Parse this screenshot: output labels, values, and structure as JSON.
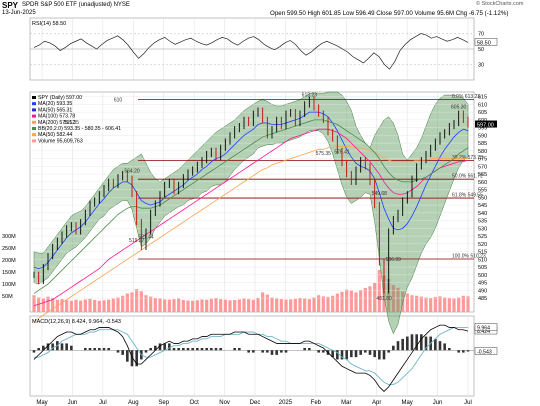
{
  "header": {
    "symbol": "SPY",
    "description": "SPDR S&P 500 ETF (unadjusted) NYSE",
    "date": "13-Jun-2025",
    "ohlc": "Open 599.50  High 601.85  Low 596.49  Close 597.00  Volume 95.6M  Chg -6.75 (-1.12%)",
    "watermark": "© StockCharts.com"
  },
  "colors": {
    "price_up": "#000000",
    "price_down": "#cc0000",
    "bollinger_fill": "#5a9a5a",
    "ma20": "#1f3fff",
    "ma50": "#2b2bd6",
    "ma100": "#ff1493",
    "ma200": "#ffa24a",
    "ma50e": "#4b8b4b",
    "level_line": "#8b0000",
    "volume": "#ff9999",
    "macd": "#000000",
    "signal": "#6fb5c9",
    "histogram": "#333333"
  },
  "legend": {
    "rsi": "RSI(14) 58.50",
    "price": [
      {
        "label": "SPY (Daily) 597.00",
        "color": "#000000"
      },
      {
        "label": "MA(20) 593.35",
        "color": "#1f3fff"
      },
      {
        "label": "MA(50) 565.31",
        "color": "#2b2bd6"
      },
      {
        "label": "MA(100) 573.78",
        "color": "#ff1493"
      },
      {
        "label": "MA(200) 575.12",
        "color": "#ffa24a"
      },
      {
        "label": "BB(20,2.0) 593.35 - 580.35 - 606.41",
        "color": "#4b8b4b"
      },
      {
        "label": "MA(50) 582.44",
        "color": "#ffa24a"
      },
      {
        "label": "Volume 95,609,763",
        "color": "#ff9999"
      }
    ],
    "macd": "MACD(12,26,9) 8.424, 9.964, -0.543"
  },
  "annotations": {
    "fib": [
      "0.0% 613.23",
      "38.2% 573.78",
      "50.0% 561.72",
      "61.8% 549.55",
      "100.0% 510.23"
    ],
    "price_points": [
      "595.35",
      "610",
      "575.35",
      "576.41",
      "549.68",
      "613.23",
      "564.20",
      "521.44",
      "519.27",
      "481.80",
      "605.30",
      "506.99"
    ]
  },
  "chart_data": [
    {
      "type": "line",
      "title": "RSI(14)",
      "ylim": [
        10,
        90
      ],
      "y_ticks": [
        30,
        50,
        70
      ],
      "last_value": 58.5,
      "values": [
        52,
        55,
        60,
        58,
        54,
        48,
        52,
        57,
        60,
        63,
        58,
        54,
        50,
        56,
        61,
        64,
        67,
        62,
        55,
        46,
        38,
        44,
        52,
        58,
        62,
        65,
        60,
        56,
        59,
        62,
        64,
        60,
        57,
        55,
        58,
        62,
        65,
        63,
        58,
        55,
        60,
        64,
        66,
        62,
        56,
        52,
        49,
        53,
        58,
        61,
        56,
        48,
        42,
        46,
        52,
        57,
        60,
        57,
        54,
        50,
        46,
        40,
        36,
        32,
        38,
        45,
        40,
        30,
        24,
        34,
        48,
        56,
        62,
        66,
        70,
        68,
        64,
        66,
        63,
        60,
        62,
        65,
        62,
        58.5
      ]
    },
    {
      "type": "line",
      "title": "SPY (Daily)",
      "ylim": [
        476,
        618
      ],
      "y_ticks": [
        485,
        490,
        495,
        500,
        505,
        510,
        515,
        520,
        525,
        530,
        535,
        540,
        545,
        550,
        555,
        560,
        565,
        570,
        575,
        580,
        585,
        590,
        595,
        600,
        605,
        610,
        615
      ],
      "x_ticks": [
        "May",
        "Jun",
        "Jul",
        "Aug",
        "Sep",
        "Oct",
        "Nov",
        "Dec",
        "2025",
        "Feb",
        "Mar",
        "Apr",
        "May",
        "Jun",
        "Jul"
      ],
      "series": [
        {
          "name": "SPY (Daily)",
          "values": [
            500,
            496,
            505,
            512,
            518,
            522,
            526,
            530,
            532,
            528,
            534,
            540,
            546,
            548,
            552,
            556,
            560,
            558,
            563,
            565,
            562,
            552,
            534,
            518,
            528,
            540,
            546,
            552,
            558,
            560,
            554,
            558,
            563,
            566,
            568,
            571,
            574,
            578,
            580,
            576,
            582,
            586,
            590,
            594,
            596,
            600,
            598,
            604,
            606,
            600,
            590,
            594,
            600,
            596,
            604,
            605,
            598,
            604,
            610,
            613,
            608,
            604,
            600,
            592,
            588,
            580,
            572,
            565,
            560,
            568,
            574,
            570,
            560,
            545,
            508,
            490,
            528,
            536,
            540,
            548,
            552,
            562,
            570,
            574,
            578,
            582,
            586,
            590,
            592,
            596,
            598,
            604,
            600,
            597
          ]
        },
        {
          "name": "MA(20)",
          "values": [
            505,
            504,
            505,
            508,
            512,
            516,
            520,
            524,
            527,
            529,
            531,
            534,
            538,
            542,
            546,
            549,
            553,
            556,
            558,
            560,
            560,
            558,
            553,
            548,
            546,
            545,
            546,
            547,
            550,
            552,
            554,
            556,
            558,
            561,
            563,
            565,
            568,
            570,
            573,
            575,
            576,
            578,
            581,
            584,
            587,
            590,
            592,
            594,
            597,
            598,
            598,
            597,
            597,
            597,
            598,
            599,
            600,
            601,
            603,
            605,
            605,
            605,
            604,
            602,
            598,
            593,
            587,
            581,
            576,
            572,
            570,
            569,
            567,
            562,
            553,
            543,
            536,
            530,
            529,
            530,
            533,
            538,
            544,
            551,
            558,
            564,
            570,
            576,
            581,
            585,
            589,
            592,
            594,
            593
          ]
        },
        {
          "name": "MA(200)",
          "values": [
            470,
            472,
            474,
            476,
            478,
            480,
            482,
            484,
            486,
            488,
            490,
            492,
            494,
            496,
            498,
            500,
            502,
            504,
            506,
            508,
            510,
            512,
            514,
            516,
            518,
            520,
            522,
            524,
            526,
            528,
            530,
            532,
            534,
            536,
            538,
            540,
            542,
            544,
            546,
            548,
            550,
            552,
            554,
            556,
            558,
            560,
            562,
            564,
            566,
            568,
            569,
            571,
            572,
            573,
            574,
            575,
            576,
            577,
            578,
            579,
            580,
            581,
            581,
            582,
            582,
            583,
            583,
            583,
            583,
            582,
            582,
            581,
            580,
            579,
            577,
            575,
            574,
            573,
            573,
            573,
            573,
            573,
            574,
            574,
            574,
            575,
            575,
            575,
            575,
            575,
            575,
            575,
            575,
            575
          ]
        },
        {
          "name": "MA(100)",
          "values": [
            480,
            481,
            482,
            483,
            484,
            486,
            488,
            490,
            492,
            494,
            496,
            498,
            500,
            502,
            504,
            507,
            510,
            512,
            514,
            516,
            518,
            520,
            522,
            524,
            526,
            528,
            530,
            532,
            534,
            536,
            538,
            540,
            542,
            544,
            546,
            548,
            550,
            552,
            554,
            556,
            558,
            560,
            562,
            564,
            566,
            568,
            570,
            572,
            574,
            576,
            578,
            580,
            582,
            584,
            586,
            588,
            589,
            590,
            591,
            592,
            593,
            594,
            594,
            594,
            593,
            592,
            590,
            588,
            585,
            582,
            579,
            576,
            573,
            569,
            565,
            560,
            556,
            553,
            552,
            552,
            553,
            555,
            557,
            560,
            563,
            565,
            567,
            569,
            570,
            571,
            572,
            573,
            573,
            574
          ]
        },
        {
          "name": "MA(50) EMA",
          "values": [
            488,
            490,
            492,
            494,
            497,
            500,
            503,
            506,
            509,
            512,
            515,
            518,
            521,
            524,
            527,
            530,
            533,
            536,
            539,
            541,
            543,
            544,
            544,
            543,
            543,
            543,
            544,
            545,
            547,
            549,
            551,
            553,
            555,
            557,
            559,
            561,
            563,
            565,
            567,
            569,
            571,
            573,
            575,
            577,
            579,
            581,
            583,
            585,
            587,
            589,
            590,
            591,
            592,
            593,
            594,
            595,
            596,
            597,
            598,
            599,
            600,
            600,
            600,
            599,
            598,
            597,
            595,
            593,
            591,
            589,
            587,
            585,
            582,
            579,
            575,
            570,
            566,
            563,
            561,
            560,
            560,
            560,
            561,
            562,
            563,
            565,
            567,
            569,
            571,
            573,
            575,
            578,
            580,
            582
          ]
        }
      ],
      "bollinger_upper": [
        515,
        514,
        514,
        518,
        522,
        526,
        530,
        534,
        538,
        540,
        541,
        544,
        548,
        552,
        556,
        560,
        564,
        568,
        570,
        572,
        572,
        574,
        576,
        578,
        572,
        566,
        562,
        560,
        562,
        564,
        566,
        568,
        571,
        574,
        577,
        580,
        583,
        586,
        589,
        592,
        594,
        596,
        598,
        600,
        603,
        606,
        608,
        610,
        612,
        613,
        612,
        610,
        609,
        609,
        610,
        611,
        612,
        613,
        615,
        617,
        617,
        617,
        617,
        618,
        618,
        618,
        616,
        612,
        606,
        596,
        590,
        585,
        582,
        590,
        595,
        600,
        602,
        598,
        590,
        578,
        574,
        578,
        582,
        588,
        596,
        604,
        610,
        614,
        616,
        616,
        616,
        615,
        614,
        610
      ]
    },
    {
      "type": "bar",
      "title": "Volume",
      "last_value": 95609763,
      "values": [
        60,
        52,
        48,
        55,
        50,
        44,
        46,
        42,
        40,
        44,
        41,
        45,
        47,
        43,
        40,
        42,
        44,
        48,
        52,
        58,
        66,
        70,
        82,
        74,
        60,
        55,
        50,
        48,
        45,
        44,
        46,
        48,
        43,
        41,
        40,
        42,
        45,
        44,
        47,
        50,
        46,
        44,
        42,
        43,
        45,
        48,
        46,
        44,
        50,
        70,
        62,
        52,
        48,
        46,
        44,
        45,
        47,
        50,
        48,
        46,
        52,
        60,
        56,
        54,
        58,
        66,
        72,
        80,
        76,
        70,
        78,
        86,
        92,
        104,
        150,
        130,
        118,
        96,
        86,
        74,
        66,
        60,
        58,
        55,
        52,
        50,
        54,
        56,
        52,
        50,
        48,
        52,
        58,
        56
      ]
    },
    {
      "type": "line",
      "title": "MACD(12,26,9)",
      "ylim": [
        -20,
        15
      ],
      "y_ticks": [
        0
      ],
      "last_value": [
        8.424,
        9.964,
        -0.543
      ],
      "series": [
        {
          "name": "MACD",
          "values": [
            -4,
            -2,
            0,
            2,
            4,
            6,
            7,
            8,
            8,
            7,
            7,
            8,
            9,
            9,
            10,
            10,
            10,
            9,
            8,
            6,
            2,
            -3,
            -6,
            -6,
            -4,
            -2,
            0,
            2,
            3,
            4,
            3,
            3,
            4,
            4,
            5,
            5,
            6,
            6,
            7,
            7,
            7,
            7,
            7,
            8,
            8,
            8,
            7,
            7,
            7,
            6,
            5,
            4,
            3,
            3,
            3,
            3,
            3,
            3,
            4,
            4,
            3,
            2,
            1,
            -1,
            -3,
            -5,
            -7,
            -8,
            -9,
            -10,
            -10,
            -10,
            -11,
            -13,
            -16,
            -18,
            -16,
            -13,
            -10,
            -7,
            -4,
            -1,
            2,
            5,
            7,
            9,
            10,
            11,
            11,
            10,
            10,
            9,
            9,
            8.4
          ]
        },
        {
          "name": "Signal",
          "values": [
            -3,
            -3,
            -2,
            -1,
            1,
            2,
            4,
            5,
            6,
            7,
            7,
            7,
            8,
            8,
            9,
            9,
            9,
            9,
            9,
            8,
            7,
            4,
            1,
            -2,
            -3,
            -3,
            -2,
            -1,
            0,
            1,
            2,
            2,
            3,
            3,
            4,
            4,
            5,
            5,
            6,
            6,
            6,
            7,
            7,
            7,
            7,
            8,
            8,
            8,
            7,
            7,
            6,
            6,
            5,
            4,
            4,
            3,
            3,
            3,
            3,
            3,
            3,
            3,
            2,
            1,
            0,
            -1,
            -3,
            -4,
            -6,
            -7,
            -8,
            -9,
            -9,
            -10,
            -12,
            -14,
            -15,
            -15,
            -14,
            -12,
            -10,
            -8,
            -5,
            -2,
            1,
            3,
            5,
            7,
            8,
            9,
            10,
            10,
            10,
            9.96
          ]
        },
        {
          "name": "Histogram",
          "values": [
            -1,
            1,
            2,
            3,
            3,
            4,
            3,
            3,
            2,
            0,
            0,
            1,
            1,
            1,
            1,
            1,
            1,
            0,
            -1,
            -2,
            -5,
            -7,
            -7,
            -4,
            -1,
            1,
            2,
            3,
            3,
            3,
            1,
            1,
            1,
            1,
            1,
            1,
            1,
            1,
            1,
            1,
            1,
            0,
            0,
            1,
            1,
            0,
            -1,
            -1,
            0,
            -1,
            -1,
            -2,
            -2,
            -1,
            -1,
            0,
            0,
            0,
            1,
            1,
            0,
            -1,
            -1,
            -2,
            -3,
            -4,
            -4,
            -4,
            -3,
            -3,
            -2,
            -1,
            -2,
            -3,
            -4,
            -4,
            -1,
            2,
            4,
            5,
            6,
            7,
            7,
            7,
            6,
            6,
            5,
            4,
            3,
            1,
            0,
            -1,
            -1,
            -0.543
          ]
        }
      ]
    }
  ]
}
